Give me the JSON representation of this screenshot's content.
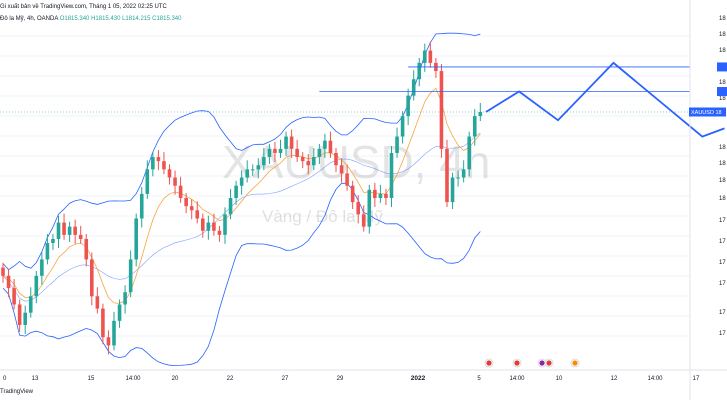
{
  "header": {
    "published": "Gi xuất bản về TradingView.com, Tháng 1 05, 2022 02:25 UTC",
    "symbol_desc": "Đô la Mỹ, 4h, OANDA",
    "ohlc": "O1815.340 H1815.430 L1814.215 C1815.340"
  },
  "watermark": {
    "symbol": "XAUUSD, 4h",
    "name": "Vàng / Đô la Mỹ"
  },
  "footer": {
    "brand": "TradingView"
  },
  "colors": {
    "bull": "#26a69a",
    "bear": "#ef5350",
    "band": "#2962ff",
    "ma": "#f7a53f",
    "level": "#2962ff",
    "projection": "#2962ff",
    "tag": "#2962ff",
    "grid": "#f0f3fa"
  },
  "chart_data": {
    "type": "candlestick",
    "symbol": "XAUUSD",
    "timeframe": "4h",
    "x_ticks": [
      "0",
      "13",
      "15",
      "14:00",
      "20",
      "22",
      "27",
      "29",
      "2022",
      "5",
      "14:00",
      "10",
      "12",
      "14:00",
      "17"
    ],
    "x_ticks_bold": [
      "2022"
    ],
    "y_ticks_visible": [
      "18",
      "18",
      "18",
      "18",
      "18",
      "18",
      "18",
      "18",
      "18",
      "18",
      "18",
      "17",
      "17",
      "17",
      "17",
      "17",
      "17"
    ],
    "price_tag": "XAUUSD  18",
    "ylim": [
      1752,
      1836
    ],
    "candles_close": [
      1775,
      1772,
      1768,
      1763,
      1766,
      1770,
      1775,
      1779,
      1783,
      1784,
      1788,
      1785,
      1787,
      1785,
      1784,
      1779,
      1770,
      1767,
      1760,
      1758,
      1764,
      1768,
      1771,
      1779,
      1789,
      1795,
      1801,
      1804,
      1803,
      1801,
      1799,
      1797,
      1794,
      1792,
      1791,
      1789,
      1786,
      1788,
      1786,
      1785,
      1790,
      1794,
      1797,
      1799,
      1801,
      1801,
      1802,
      1804,
      1806,
      1805,
      1806,
      1809,
      1806,
      1804,
      1803,
      1802,
      1804,
      1806,
      1808,
      1805,
      1802,
      1800,
      1797,
      1793,
      1790,
      1787,
      1796,
      1794,
      1795,
      1794,
      1805,
      1809,
      1814,
      1819,
      1823,
      1827,
      1830,
      1827,
      1825,
      1806,
      1793,
      1799,
      1799,
      1801,
      1809,
      1814,
      1815
    ],
    "resistance_levels": [
      1826,
      1820
    ],
    "projection_path": [
      [
        1,
        1815
      ],
      [
        7,
        1820
      ],
      [
        14,
        1813
      ],
      [
        24,
        1827
      ],
      [
        40,
        1809
      ],
      [
        44,
        1811
      ]
    ],
    "has_bollinger_bands": true,
    "has_moving_average": true,
    "grid": true,
    "legend": "none"
  }
}
